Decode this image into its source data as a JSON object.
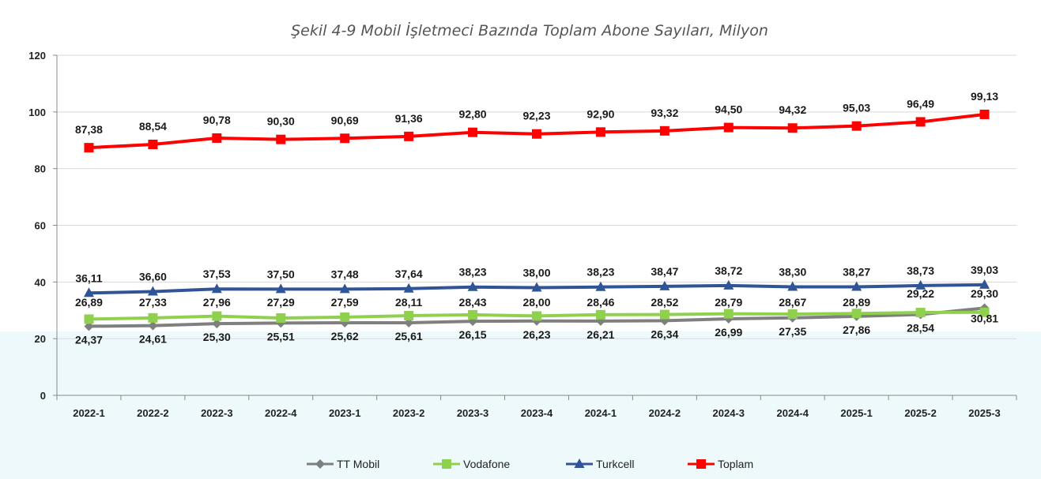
{
  "chart_data": {
    "type": "line",
    "title": "Şekil 4-9 Mobil İşletmeci Bazında Toplam Abone Sayıları, Milyon",
    "xlabel": "",
    "ylabel": "",
    "ylim": [
      0,
      120
    ],
    "yticks": [
      "0",
      "20",
      "40",
      "60",
      "80",
      "100",
      "120"
    ],
    "grid": true,
    "legend": "bottom",
    "categories": [
      "2022-1",
      "2022-2",
      "2022-3",
      "2022-4",
      "2023-1",
      "2023-2",
      "2023-3",
      "2023-4",
      "2024-1",
      "2024-2",
      "2024-3",
      "2024-4",
      "2025-1",
      "2025-2",
      "2025-3"
    ],
    "series": [
      {
        "name": "TT Mobil",
        "color": "#7f7f7f",
        "marker": "diamond",
        "values": [
          24.37,
          24.61,
          25.3,
          25.51,
          25.62,
          25.61,
          26.15,
          26.23,
          26.21,
          26.34,
          26.99,
          27.35,
          27.86,
          28.54,
          30.81
        ],
        "labels": [
          "24,37",
          "24,61",
          "25,30",
          "25,51",
          "25,62",
          "25,61",
          "26,15",
          "26,23",
          "26,21",
          "26,34",
          "26,99",
          "27,35",
          "27,86",
          "28,54",
          "30,81"
        ]
      },
      {
        "name": "Vodafone",
        "color": "#8fd14f",
        "marker": "square",
        "values": [
          26.89,
          27.33,
          27.96,
          27.29,
          27.59,
          28.11,
          28.43,
          28.0,
          28.46,
          28.52,
          28.79,
          28.67,
          28.89,
          29.22,
          29.3
        ],
        "labels": [
          "26,89",
          "27,33",
          "27,96",
          "27,29",
          "27,59",
          "28,11",
          "28,43",
          "28,00",
          "28,46",
          "28,52",
          "28,79",
          "28,67",
          "28,89",
          "29,22",
          "29,30"
        ]
      },
      {
        "name": "Turkcell",
        "color": "#2f5597",
        "marker": "triangle",
        "values": [
          36.11,
          36.6,
          37.53,
          37.5,
          37.48,
          37.64,
          38.23,
          38.0,
          38.23,
          38.47,
          38.72,
          38.3,
          38.27,
          38.73,
          39.03
        ],
        "labels": [
          "36,11",
          "36,60",
          "37,53",
          "37,50",
          "37,48",
          "37,64",
          "38,23",
          "38,00",
          "38,23",
          "38,47",
          "38,72",
          "38,30",
          "38,27",
          "38,73",
          "39,03"
        ]
      },
      {
        "name": "Toplam",
        "color": "#ff0000",
        "marker": "square",
        "values": [
          87.38,
          88.54,
          90.78,
          90.3,
          90.69,
          91.36,
          92.8,
          92.23,
          92.9,
          93.32,
          94.5,
          94.32,
          95.03,
          96.49,
          99.13
        ],
        "labels": [
          "87,38",
          "88,54",
          "90,78",
          "90,30",
          "90,69",
          "91,36",
          "92,80",
          "92,23",
          "92,90",
          "93,32",
          "94,50",
          "94,32",
          "95,03",
          "96,49",
          "99,13"
        ]
      }
    ]
  }
}
